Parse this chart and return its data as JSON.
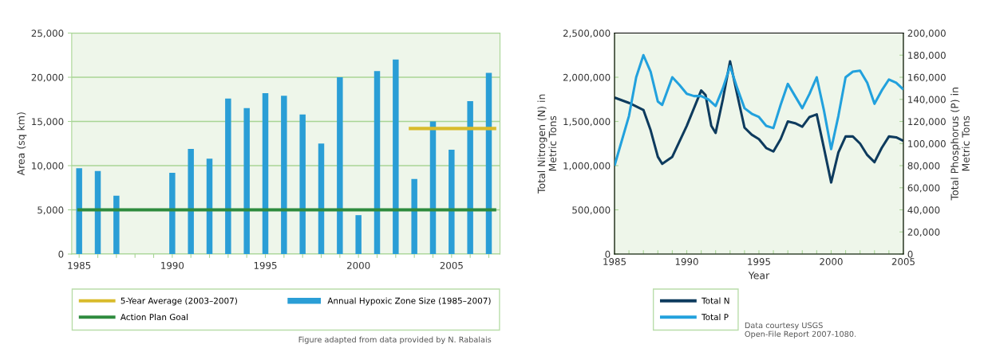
{
  "chart_data": [
    {
      "type": "bar",
      "ylabel": "Area (sq km)",
      "xlim": [
        1984.6,
        2007.6
      ],
      "ylim": [
        0,
        25000
      ],
      "xticks": [
        1985,
        {
          "value": 1986,
          "label": null
        },
        {
          "value": 1987,
          "label": null
        },
        {
          "value": 1988,
          "label": null
        },
        {
          "value": 1989,
          "label": null
        },
        1990,
        {
          "value": 1991,
          "label": null
        },
        {
          "value": 1992,
          "label": null
        },
        {
          "value": 1993,
          "label": null
        },
        {
          "value": 1994,
          "label": null
        },
        1995,
        {
          "value": 1996,
          "label": null
        },
        {
          "value": 1997,
          "label": null
        },
        {
          "value": 1998,
          "label": null
        },
        {
          "value": 1999,
          "label": null
        },
        2000,
        {
          "value": 2001,
          "label": null
        },
        {
          "value": 2002,
          "label": null
        },
        {
          "value": 2003,
          "label": null
        },
        {
          "value": 2004,
          "label": null
        },
        2005,
        {
          "value": 2006,
          "label": null
        },
        {
          "value": 2007,
          "label": null
        }
      ],
      "yticks": [
        0,
        {
          "value": 5000,
          "label": "5,000"
        },
        {
          "value": 10000,
          "label": "10,000"
        },
        {
          "value": 15000,
          "label": "15,000"
        },
        {
          "value": 20000,
          "label": "20,000"
        },
        {
          "value": 25000,
          "label": "25,000"
        }
      ],
      "grid": "y",
      "legend": "bottom",
      "series": [
        {
          "name": "5-Year Average (2003–2007)",
          "type": "line",
          "color": "#d9bb2c",
          "x": [
            2002.7,
            2007.4
          ],
          "values": [
            14200,
            14200
          ]
        },
        {
          "name": "Annual Hypoxic Zone Size (1985–2007)",
          "type": "bar",
          "color": "#2a9ed6",
          "x": [
            1985,
            1986,
            1987,
            1990,
            1991,
            1992,
            1993,
            1994,
            1995,
            1996,
            1997,
            1998,
            1999,
            2000,
            2001,
            2002,
            2003,
            2004,
            2005,
            2006,
            2007
          ],
          "values": [
            9700,
            9400,
            6600,
            9200,
            11900,
            10800,
            17600,
            16500,
            18200,
            17900,
            15800,
            12500,
            20000,
            4400,
            20700,
            22000,
            8500,
            15000,
            11800,
            17300,
            20500
          ]
        },
        {
          "name": "Action Plan Goal",
          "type": "line",
          "color": "#2e8b3e",
          "x": [
            1984.9,
            2007.4
          ],
          "values": [
            5000,
            5000
          ]
        }
      ],
      "annotations": [
        "Figure adapted from data provided by N. Rabalais"
      ]
    },
    {
      "type": "line",
      "xlabel": "Year",
      "ylabel": "Total Nitrogen (N) in\nMetric Tons",
      "y2label": "Total Phosphorus (P) in\nMetric Tons",
      "xlim": [
        1985,
        2005
      ],
      "ylim": [
        0,
        2500000
      ],
      "y2lim": [
        0,
        200000
      ],
      "xticks": [
        1985,
        {
          "value": 1986,
          "label": null
        },
        {
          "value": 1987,
          "label": null
        },
        {
          "value": 1988,
          "label": null
        },
        {
          "value": 1989,
          "label": null
        },
        1990,
        {
          "value": 1991,
          "label": null
        },
        {
          "value": 1992,
          "label": null
        },
        {
          "value": 1993,
          "label": null
        },
        {
          "value": 1994,
          "label": null
        },
        1995,
        {
          "value": 1996,
          "label": null
        },
        {
          "value": 1997,
          "label": null
        },
        {
          "value": 1998,
          "label": null
        },
        {
          "value": 1999,
          "label": null
        },
        2000,
        {
          "value": 2001,
          "label": null
        },
        {
          "value": 2002,
          "label": null
        },
        {
          "value": 2003,
          "label": null
        },
        {
          "value": 2004,
          "label": null
        },
        2005
      ],
      "yticks": [
        0,
        {
          "value": 500000,
          "label": "500,000"
        },
        {
          "value": 1000000,
          "label": "1,000,000"
        },
        {
          "value": 1500000,
          "label": "1,500,000"
        },
        {
          "value": 2000000,
          "label": "2,000,000"
        },
        {
          "value": 2500000,
          "label": "2,500,000"
        }
      ],
      "y2ticks": [
        0,
        {
          "value": 20000,
          "label": "20,000"
        },
        {
          "value": 40000,
          "label": "40,000"
        },
        {
          "value": 60000,
          "label": "60,000"
        },
        {
          "value": 80000,
          "label": "80,000"
        },
        {
          "value": 100000,
          "label": "100,000"
        },
        {
          "value": 120000,
          "label": "120,000"
        },
        {
          "value": 140000,
          "label": "140,000"
        },
        {
          "value": 160000,
          "label": "160,000"
        },
        {
          "value": 180000,
          "label": "180,000"
        },
        {
          "value": 200000,
          "label": "200,000"
        }
      ],
      "legend": "bottom",
      "series": [
        {
          "name": "Total N",
          "color": "#0e3b5e",
          "x": [
            1985,
            1986,
            1987,
            1987.5,
            1988,
            1988.3,
            1989,
            1990,
            1990.5,
            1991,
            1991.3,
            1991.7,
            1992,
            1992.5,
            1993,
            1993.5,
            1994,
            1994.5,
            1995,
            1995.5,
            1996,
            1996.5,
            1997,
            1997.5,
            1998,
            1998.5,
            1999,
            1999.5,
            2000,
            2000.5,
            2001,
            2001.5,
            2002,
            2002.5,
            2003,
            2003.5,
            2004,
            2004.5,
            2005
          ],
          "values": [
            1770000,
            1710000,
            1630000,
            1400000,
            1100000,
            1020000,
            1100000,
            1450000,
            1650000,
            1850000,
            1800000,
            1450000,
            1370000,
            1750000,
            2180000,
            1800000,
            1430000,
            1350000,
            1300000,
            1200000,
            1160000,
            1300000,
            1500000,
            1480000,
            1440000,
            1550000,
            1580000,
            1200000,
            810000,
            1150000,
            1330000,
            1330000,
            1250000,
            1120000,
            1040000,
            1200000,
            1330000,
            1320000,
            1280000
          ]
        },
        {
          "name": "Total P",
          "color": "#22a1dd",
          "axis": "y2",
          "x": [
            1985,
            1986,
            1986.5,
            1987,
            1987.5,
            1988,
            1988.3,
            1989,
            1989.5,
            1990,
            1990.5,
            1991,
            1991.5,
            1992,
            1992.5,
            1993,
            1993.5,
            1994,
            1994.5,
            1995,
            1995.5,
            1996,
            1996.5,
            1997,
            1997.5,
            1998,
            1998.5,
            1999,
            1999.5,
            2000,
            2000.5,
            2001,
            2001.5,
            2002,
            2002.5,
            2003,
            2003.5,
            2004,
            2004.5,
            2005
          ],
          "values": [
            80000,
            125000,
            160000,
            180000,
            165000,
            138000,
            135000,
            160000,
            153000,
            145000,
            143000,
            143000,
            140000,
            134000,
            150000,
            170000,
            150000,
            132000,
            127000,
            124000,
            116000,
            114000,
            135000,
            154000,
            143000,
            132000,
            145000,
            160000,
            130000,
            95000,
            125000,
            160000,
            165000,
            166000,
            155000,
            136000,
            148000,
            158000,
            155000,
            149000
          ]
        }
      ],
      "annotations": [
        "Data courtesy USGS\nOpen-File Report 2007-1080."
      ]
    }
  ]
}
